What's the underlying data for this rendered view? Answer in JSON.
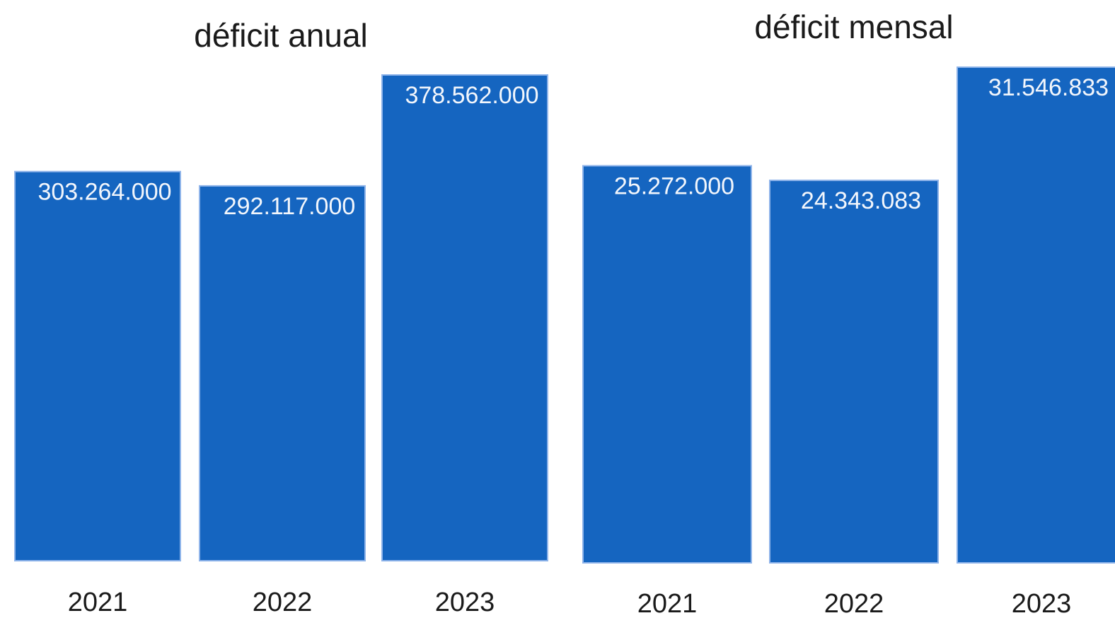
{
  "chart_data": [
    {
      "type": "bar",
      "title": "déficit anual",
      "categories": [
        "2021",
        "2022",
        "2023"
      ],
      "values": [
        303264000,
        292117000,
        378562000
      ],
      "value_labels": [
        "303.264.000",
        "292.117.000",
        "378.562.000"
      ],
      "ylim": [
        0,
        378562000
      ],
      "grid": false,
      "bar_color": "#1565c0"
    },
    {
      "type": "bar",
      "title": "déficit mensal",
      "categories": [
        "2021",
        "2022",
        "2023"
      ],
      "values": [
        25272000,
        24343083,
        31546833
      ],
      "value_labels": [
        "25.272.000",
        "24.343.083",
        "31.546.833"
      ],
      "ylim": [
        0,
        31546833
      ],
      "grid": false,
      "bar_color": "#1565c0"
    }
  ]
}
